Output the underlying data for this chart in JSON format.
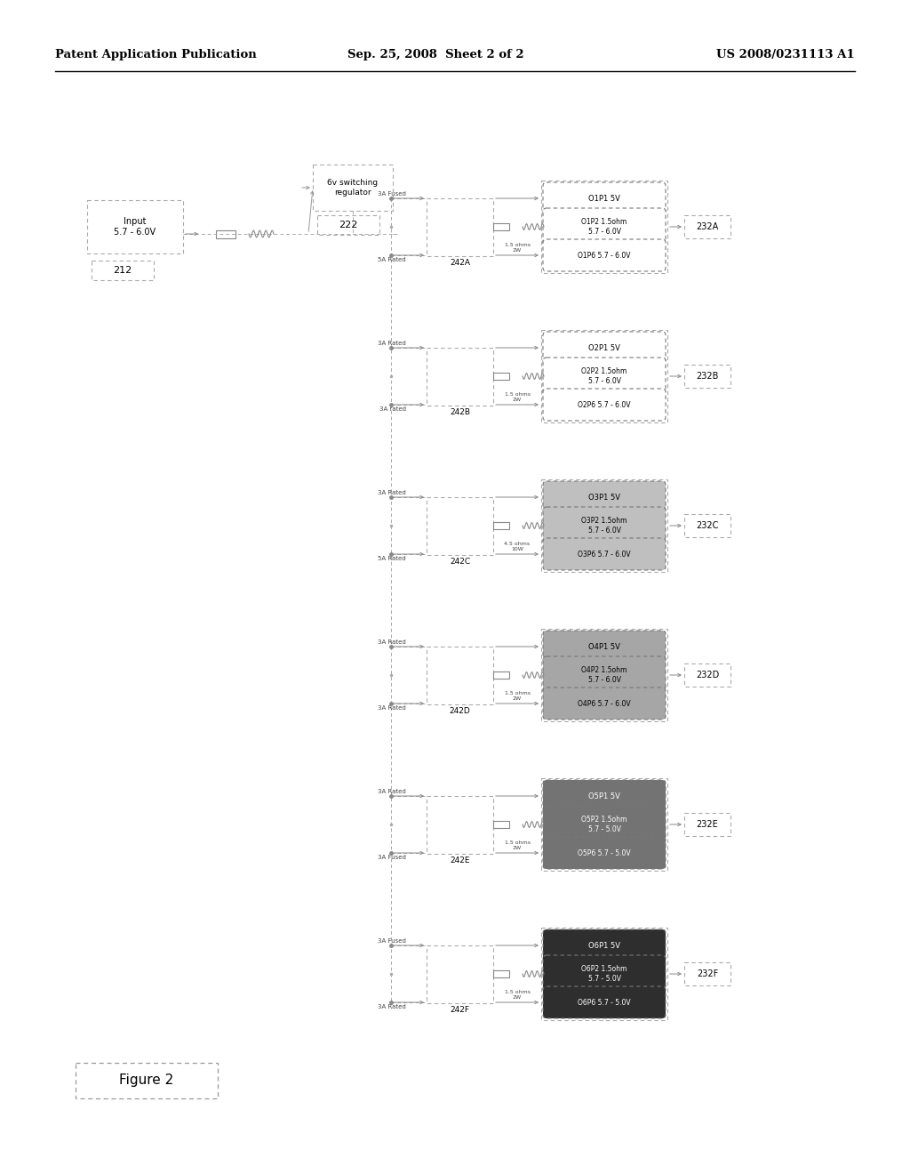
{
  "header_left": "Patent Application Publication",
  "header_mid": "Sep. 25, 2008  Sheet 2 of 2",
  "header_right": "US 2008/0231113 A1",
  "input_label": "Input\n5.7 - 6.0V",
  "input_id": "212",
  "regulator_label": "6v switching\nregulator",
  "regulator_id": "222",
  "figure_label": "Figure 2",
  "channels": [
    {
      "id": "A",
      "box_id": "242A",
      "group_id": "232A",
      "top_line": "3A Fused",
      "bottom_line": "5A Rated",
      "inductor_label": "1.5 ohms\n2W",
      "outputs": [
        {
          "label": "O1P1 5V",
          "shade": 0.0
        },
        {
          "label": "O1P2 1.5ohm\n5.7 - 6.0V",
          "shade": 0.0
        },
        {
          "label": "O1P6 5.7 - 6.0V",
          "shade": 0.0
        }
      ]
    },
    {
      "id": "B",
      "box_id": "242B",
      "group_id": "232B",
      "top_line": "3A Rated",
      "bottom_line": "3A rated",
      "inductor_label": "1.5 ohms\n2W",
      "outputs": [
        {
          "label": "O2P1 5V",
          "shade": 0.0
        },
        {
          "label": "O2P2 1.5ohm\n5.7 - 6.0V",
          "shade": 0.0
        },
        {
          "label": "O2P6 5.7 - 6.0V",
          "shade": 0.0
        }
      ]
    },
    {
      "id": "C",
      "box_id": "242C",
      "group_id": "232C",
      "top_line": "3A Rated",
      "bottom_line": "5A Rated",
      "inductor_label": "4.5 ohms\n10W",
      "outputs": [
        {
          "label": "O3P1 5V",
          "shade": 0.25
        },
        {
          "label": "O3P2 1.5ohm\n5.7 - 6.0V",
          "shade": 0.25
        },
        {
          "label": "O3P6 5.7 - 6.0V",
          "shade": 0.25
        }
      ]
    },
    {
      "id": "D",
      "box_id": "242D",
      "group_id": "232D",
      "top_line": "3A Rated",
      "bottom_line": "3A Rated",
      "inductor_label": "1.5 ohms\n2W",
      "outputs": [
        {
          "label": "O4P1 5V",
          "shade": 0.35
        },
        {
          "label": "O4P2 1.5ohm\n5.7 - 6.0V",
          "shade": 0.35
        },
        {
          "label": "O4P6 5.7 - 6.0V",
          "shade": 0.35
        }
      ]
    },
    {
      "id": "E",
      "box_id": "242E",
      "group_id": "232E",
      "top_line": "3A Rated",
      "bottom_line": "3A Fused",
      "inductor_label": "1.5 ohms\n2W",
      "outputs": [
        {
          "label": "O5P1 5V",
          "shade": 0.55
        },
        {
          "label": "O5P2 1.5ohm\n5.7 - 5.0V",
          "shade": 0.55
        },
        {
          "label": "O5P6 5.7 - 5.0V",
          "shade": 0.55
        }
      ]
    },
    {
      "id": "F",
      "box_id": "242F",
      "group_id": "232F",
      "top_line": "3A Fused",
      "bottom_line": "3A Rated",
      "inductor_label": "1.5 ohms\n2W",
      "outputs": [
        {
          "label": "O6P1 5V",
          "shade": 0.82
        },
        {
          "label": "O6P2 1.5ohm\n5.7 - 5.0V",
          "shade": 0.82
        },
        {
          "label": "O6P6 5.7 - 5.0V",
          "shade": 0.82
        }
      ]
    }
  ],
  "bg_color": "#ffffff"
}
